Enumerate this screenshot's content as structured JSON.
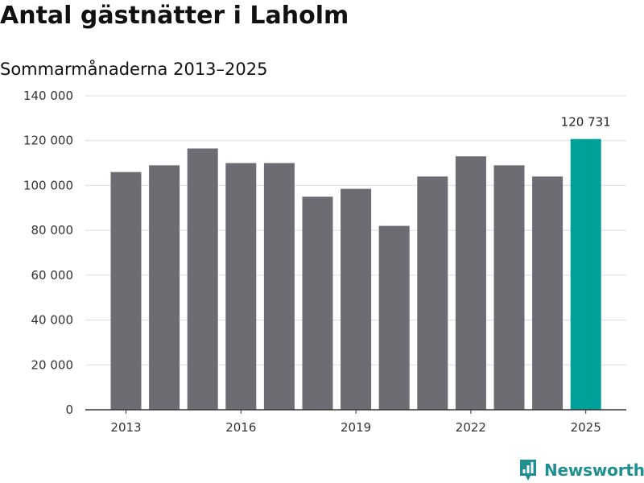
{
  "title": "Antal gästnätter i Laholm",
  "subtitle": "Sommarmånaderna 2013–2025",
  "logo": {
    "text": "Newsworthy",
    "icon": "newsworthy-logo-icon",
    "color": "#1f8f91"
  },
  "colors": {
    "bar": "#6d6c72",
    "highlight": "#00a09a",
    "grid": "#dddddd",
    "axis": "#333333"
  },
  "chart_data": {
    "type": "bar",
    "title": "Antal gästnätter i Laholm",
    "subtitle": "Sommarmånaderna 2013–2025",
    "xlabel": "",
    "ylabel": "",
    "categories": [
      "2013",
      "2014",
      "2015",
      "2016",
      "2017",
      "2018",
      "2019",
      "2020",
      "2021",
      "2022",
      "2023",
      "2024",
      "2025"
    ],
    "values": [
      106000,
      109000,
      116500,
      110000,
      110000,
      95000,
      98500,
      82000,
      104000,
      113000,
      109000,
      104000,
      120731
    ],
    "highlight_index": 12,
    "data_labels": [
      {
        "index": 12,
        "text": "120 731"
      }
    ],
    "x_tick_labels": [
      "2013",
      "2016",
      "2019",
      "2022",
      "2025"
    ],
    "y_ticks": [
      0,
      20000,
      40000,
      60000,
      80000,
      100000,
      120000,
      140000
    ],
    "y_tick_labels": [
      "0",
      "20 000",
      "40 000",
      "60 000",
      "80 000",
      "100 000",
      "120 000",
      "140 000"
    ],
    "ylim": [
      0,
      140000
    ],
    "grid": true,
    "legend": "none"
  }
}
